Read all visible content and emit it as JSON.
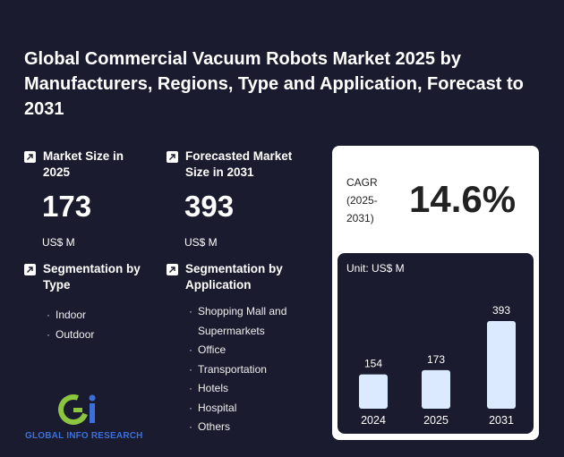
{
  "title": "Global Commercial Vacuum Robots Market 2025 by Manufacturers, Regions, Type and Application, Forecast to 2031",
  "market_size": {
    "label": "Market Size in 2025",
    "value": "173",
    "unit": "US$ M"
  },
  "forecast_size": {
    "label": "Forecasted Market Size in 2031",
    "value": "393",
    "unit": "US$ M"
  },
  "segmentation_type": {
    "label": "Segmentation by Type",
    "items": [
      "Indoor",
      "Outdoor"
    ]
  },
  "segmentation_application": {
    "label": "Segmentation by Application",
    "items": [
      "Shopping Mall and Supermarkets",
      "Office",
      "Transportation",
      "Hotels",
      "Hospital",
      "Others"
    ]
  },
  "cagr": {
    "label": "CAGR (2025-2031)",
    "value": "14.6%"
  },
  "logo": {
    "text": "GLOBAL INFO RESEARCH"
  },
  "colors": {
    "background": "#1a1b2e",
    "bar": "#dbeafe",
    "logo_green": "#8cc63f",
    "logo_blue": "#3b6fd9"
  },
  "chart_data": {
    "type": "bar",
    "unit_label": "Unit: US$ M",
    "categories": [
      "2024",
      "2025",
      "2031"
    ],
    "values": [
      154,
      173,
      393
    ],
    "ylim": [
      0,
      393
    ],
    "grid": false
  }
}
